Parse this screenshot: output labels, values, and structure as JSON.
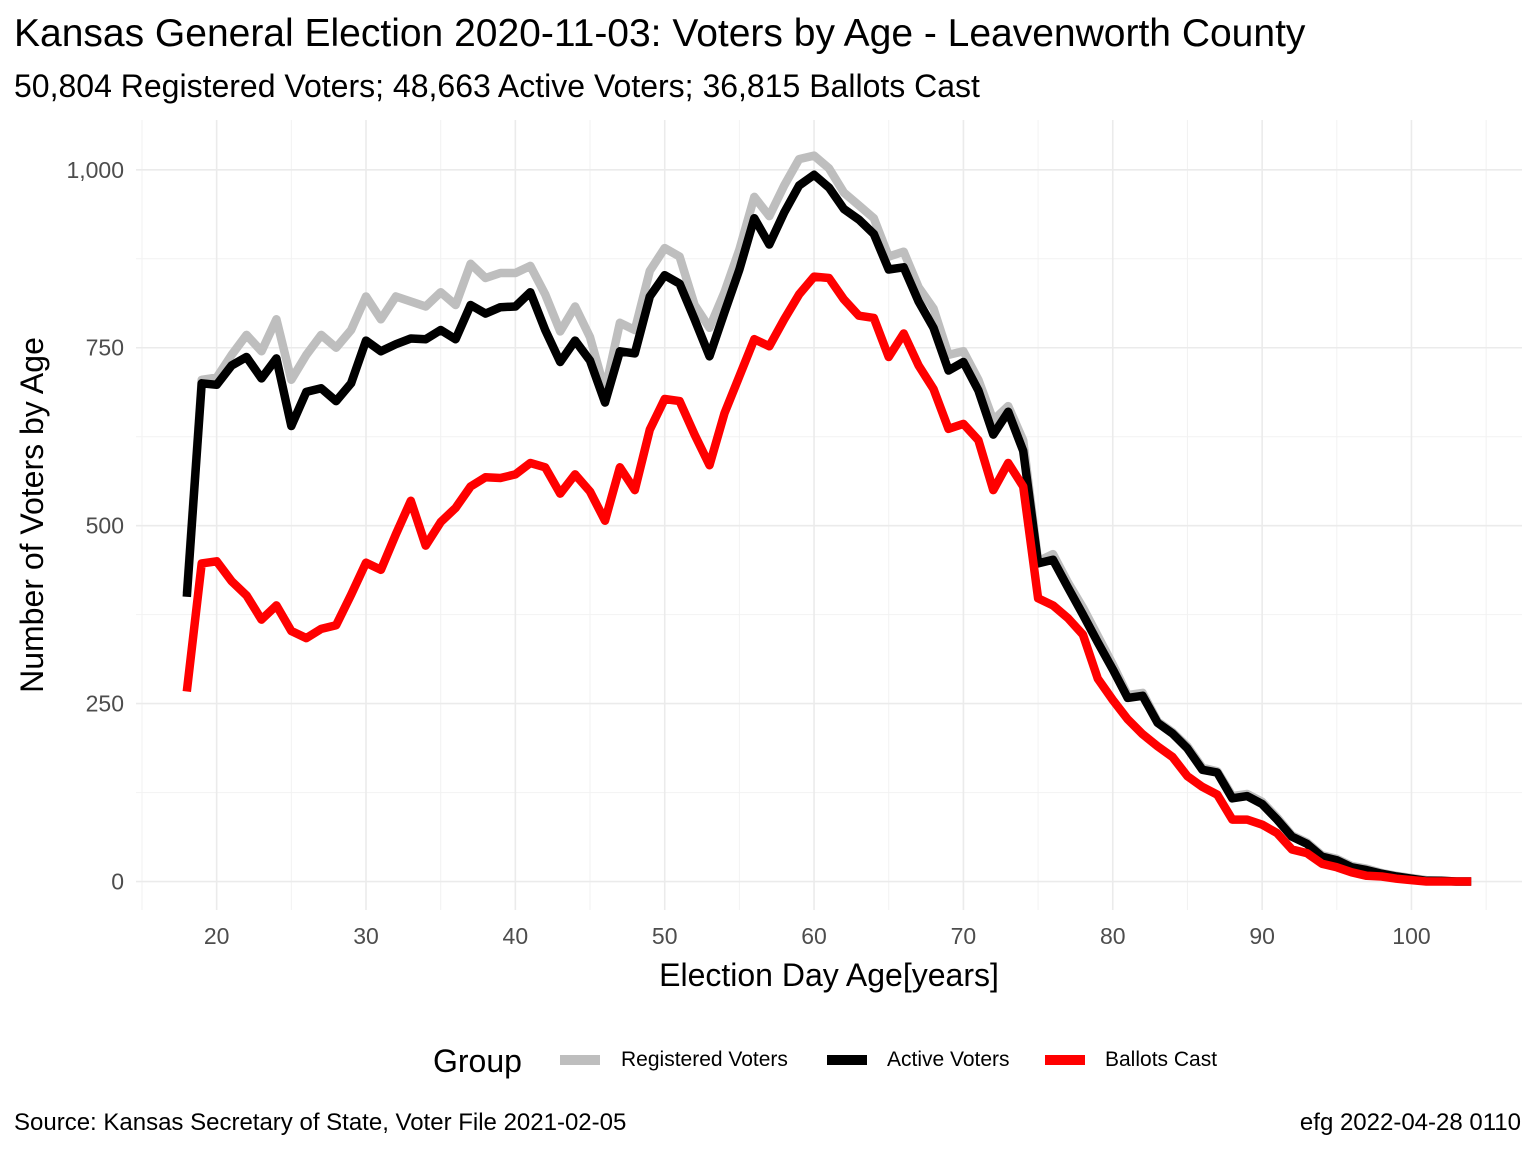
{
  "header": {
    "title": "Kansas General Election 2020-11-03:  Voters by Age - Leavenworth County",
    "subtitle": "50,804 Registered Voters; 48,663 Active Voters; 36,815 Ballots Cast"
  },
  "caption": {
    "source": "Source:  Kansas Secretary of State, Voter File  2021-02-05",
    "credit": "efg 2022-04-28 0110"
  },
  "legend": {
    "title": "Group",
    "position": "bottom"
  },
  "chart_data": {
    "type": "line",
    "title": "Kansas General Election 2020-11-03:  Voters by Age - Leavenworth County",
    "subtitle": "50,804 Registered Voters; 48,663 Active Voters; 36,815 Ballots Cast",
    "xlabel": "Election Day Age[years]",
    "ylabel": "Number of Voters by Age",
    "xlim": [
      14.6,
      107.4
    ],
    "ylim": [
      -40,
      1070
    ],
    "xticks": [
      20,
      30,
      40,
      50,
      60,
      70,
      80,
      90,
      100
    ],
    "yticks": [
      0,
      250,
      500,
      750,
      1000
    ],
    "ytick_labels": [
      "0",
      "250",
      "500",
      "750",
      "1,000"
    ],
    "grid": true,
    "legend_position": "bottom",
    "x": [
      18,
      19,
      20,
      21,
      22,
      23,
      24,
      25,
      26,
      27,
      28,
      29,
      30,
      31,
      32,
      33,
      34,
      35,
      36,
      37,
      38,
      39,
      40,
      41,
      42,
      43,
      44,
      45,
      46,
      47,
      48,
      49,
      50,
      51,
      52,
      53,
      54,
      55,
      56,
      57,
      58,
      59,
      60,
      61,
      62,
      63,
      64,
      65,
      66,
      67,
      68,
      69,
      70,
      71,
      72,
      73,
      74,
      75,
      76,
      77,
      78,
      79,
      80,
      81,
      82,
      83,
      84,
      85,
      86,
      87,
      88,
      89,
      90,
      91,
      92,
      93,
      94,
      95,
      96,
      97,
      98,
      99,
      100,
      101,
      102,
      103,
      104
    ],
    "series": [
      {
        "name": "Registered Voters",
        "color": "#bebebe",
        "values": [
          405,
          705,
          708,
          740,
          768,
          745,
          790,
          705,
          740,
          768,
          750,
          775,
          822,
          790,
          822,
          815,
          808,
          828,
          810,
          868,
          848,
          855,
          855,
          865,
          825,
          773,
          808,
          765,
          690,
          785,
          775,
          858,
          890,
          878,
          810,
          778,
          828,
          888,
          962,
          935,
          978,
          1015,
          1020,
          1002,
          968,
          950,
          932,
          878,
          885,
          835,
          805,
          740,
          745,
          705,
          648,
          668,
          620,
          450,
          460,
          420,
          385,
          345,
          305,
          262,
          265,
          225,
          210,
          190,
          160,
          155,
          120,
          123,
          112,
          90,
          65,
          55,
          37,
          32,
          22,
          18,
          12,
          8,
          5,
          2,
          1,
          0,
          0
        ]
      },
      {
        "name": "Active Voters",
        "color": "#000000",
        "values": [
          400,
          700,
          698,
          725,
          737,
          707,
          735,
          640,
          688,
          693,
          675,
          700,
          760,
          745,
          755,
          763,
          762,
          775,
          762,
          810,
          798,
          807,
          808,
          828,
          775,
          730,
          760,
          732,
          673,
          745,
          742,
          822,
          852,
          840,
          790,
          738,
          800,
          860,
          932,
          895,
          940,
          978,
          993,
          975,
          945,
          930,
          910,
          860,
          863,
          815,
          778,
          718,
          730,
          690,
          628,
          660,
          605,
          447,
          452,
          413,
          375,
          336,
          298,
          258,
          261,
          223,
          208,
          187,
          157,
          153,
          117,
          120,
          109,
          87,
          63,
          53,
          35,
          30,
          20,
          16,
          11,
          7,
          4,
          1,
          1,
          0,
          0
        ]
      },
      {
        "name": "Ballots Cast",
        "color": "#ff0000",
        "values": [
          267,
          447,
          450,
          422,
          402,
          368,
          388,
          352,
          342,
          355,
          360,
          403,
          448,
          438,
          488,
          535,
          472,
          505,
          525,
          555,
          568,
          567,
          572,
          588,
          582,
          545,
          572,
          548,
          507,
          582,
          550,
          635,
          678,
          675,
          628,
          585,
          658,
          710,
          762,
          752,
          790,
          825,
          850,
          848,
          818,
          795,
          792,
          737,
          770,
          725,
          692,
          636,
          643,
          620,
          550,
          588,
          555,
          398,
          388,
          370,
          347,
          285,
          255,
          228,
          207,
          190,
          175,
          148,
          133,
          122,
          87,
          87,
          80,
          68,
          45,
          40,
          25,
          20,
          13,
          8,
          7,
          4,
          2,
          0,
          0,
          0,
          0
        ]
      }
    ]
  }
}
